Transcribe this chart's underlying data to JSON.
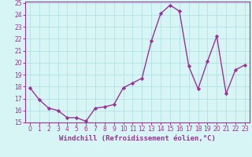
{
  "x": [
    0,
    1,
    2,
    3,
    4,
    5,
    6,
    7,
    8,
    9,
    10,
    11,
    12,
    13,
    14,
    15,
    16,
    17,
    18,
    19,
    20,
    21,
    22,
    23
  ],
  "y": [
    17.9,
    16.9,
    16.2,
    16.0,
    15.4,
    15.4,
    15.1,
    16.2,
    16.3,
    16.5,
    17.9,
    18.3,
    18.7,
    21.8,
    24.1,
    24.8,
    24.3,
    19.7,
    17.8,
    20.1,
    22.2,
    17.4,
    19.4,
    19.8
  ],
  "line_color": "#993399",
  "marker": "D",
  "marker_size": 2.2,
  "bg_color": "#d8f5f5",
  "grid_color": "#aadddd",
  "xlabel": "Windchill (Refroidissement éolien,°C)",
  "xlabel_color": "#993399",
  "ylim": [
    15,
    25
  ],
  "xlim": [
    -0.5,
    23.5
  ],
  "yticks": [
    15,
    16,
    17,
    18,
    19,
    20,
    21,
    22,
    23,
    24,
    25
  ],
  "xticks": [
    0,
    1,
    2,
    3,
    4,
    5,
    6,
    7,
    8,
    9,
    10,
    11,
    12,
    13,
    14,
    15,
    16,
    17,
    18,
    19,
    20,
    21,
    22,
    23
  ],
  "tick_color": "#993399",
  "tick_fontsize": 5.5,
  "xlabel_fontsize": 6.5,
  "spine_color": "#993399",
  "linewidth": 1.0
}
